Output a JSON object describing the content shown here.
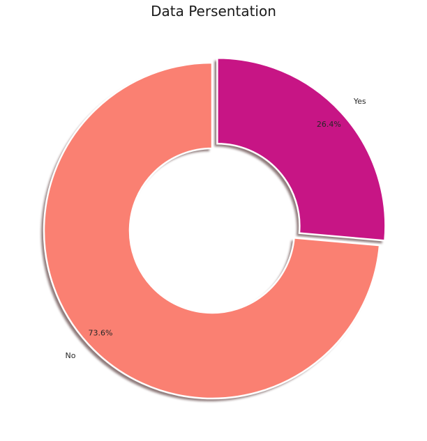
{
  "chart_data": {
    "type": "pie",
    "title": "Data Persentation",
    "donut": true,
    "shadow": true,
    "start_angle_deg": 90,
    "direction": "clockwise",
    "slices": [
      {
        "label": "Yes",
        "value": 26.4,
        "pct_label": "26.4%",
        "color": "#c71585",
        "exploded": true
      },
      {
        "label": "No",
        "value": 73.6,
        "pct_label": "73.6%",
        "color": "#fa8072",
        "exploded": false
      }
    ]
  }
}
